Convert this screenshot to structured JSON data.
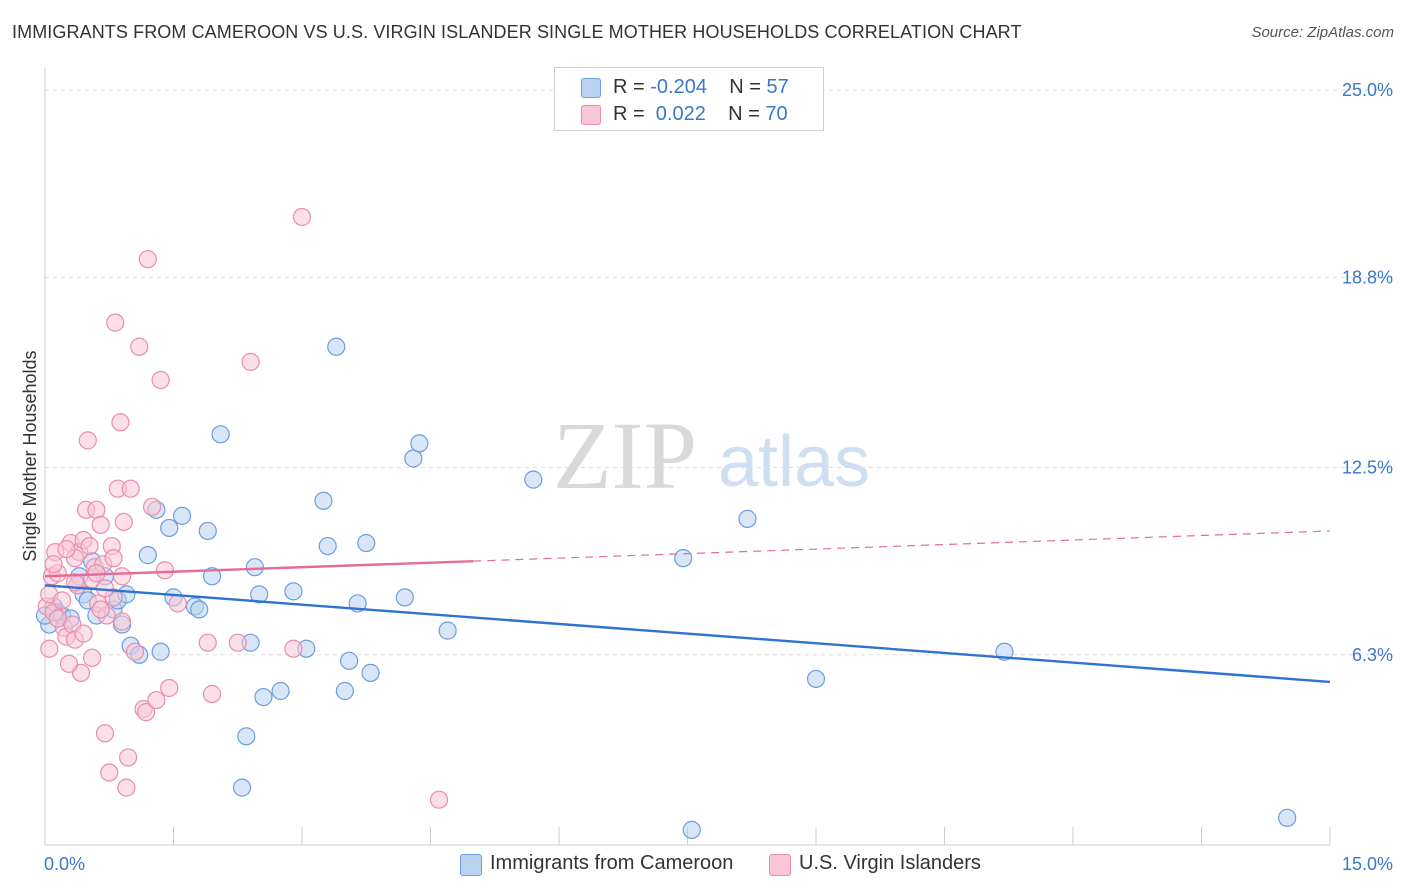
{
  "title": "IMMIGRANTS FROM CAMEROON VS U.S. VIRGIN ISLANDER SINGLE MOTHER HOUSEHOLDS CORRELATION CHART",
  "source": "Source: ZipAtlas.com",
  "watermark": {
    "zip": "ZIP",
    "atlas": "atlas"
  },
  "legend": {
    "rows": [
      {
        "r_label": "R = ",
        "r_value": "-0.204",
        "n_label": "N = ",
        "n_value": "57"
      },
      {
        "r_label": "R = ",
        "r_value": " 0.022",
        "n_label": "N = ",
        "n_value": "70"
      }
    ]
  },
  "bottom_legend": [
    "Immigrants from Cameroon",
    "U.S. Virgin Islanders"
  ],
  "chart_data": {
    "type": "scatter",
    "ylabel": "Single Mother Households",
    "xlabel": "",
    "xlim": [
      0,
      15
    ],
    "ylim": [
      0,
      25.5
    ],
    "x_tick_labels": [
      "0.0%",
      "15.0%"
    ],
    "y_ticks": [
      6.3,
      12.5,
      18.8,
      25.0
    ],
    "y_tick_labels": [
      "6.3%",
      "12.5%",
      "18.8%",
      "25.0%"
    ],
    "grid": true,
    "colors": {
      "blue": "#6a9de0",
      "blue_fill": "#b9d2f2",
      "blue_line": "#2f72d1",
      "pink": "#eb8cab",
      "pink_fill": "#f8c6d6",
      "pink_line": "#e36d96"
    },
    "series": [
      {
        "name": "Immigrants from Cameroon",
        "color": "blue",
        "points": [
          [
            0.05,
            7.3
          ],
          [
            0.1,
            7.9
          ],
          [
            0.15,
            7.7
          ],
          [
            0.2,
            7.6
          ],
          [
            0.3,
            7.5
          ],
          [
            0.4,
            8.9
          ],
          [
            0.45,
            8.3
          ],
          [
            0.5,
            8.1
          ],
          [
            0.55,
            9.4
          ],
          [
            0.6,
            7.6
          ],
          [
            0.7,
            8.9
          ],
          [
            0.8,
            7.8
          ],
          [
            0.85,
            8.1
          ],
          [
            0.9,
            7.3
          ],
          [
            0.95,
            8.3
          ],
          [
            1.0,
            6.6
          ],
          [
            1.1,
            6.3
          ],
          [
            1.2,
            9.6
          ],
          [
            1.35,
            6.4
          ],
          [
            1.3,
            11.1
          ],
          [
            1.5,
            8.2
          ],
          [
            1.45,
            10.5
          ],
          [
            1.6,
            10.9
          ],
          [
            1.75,
            7.9
          ],
          [
            1.8,
            7.8
          ],
          [
            1.9,
            10.4
          ],
          [
            1.95,
            8.9
          ],
          [
            2.05,
            13.6
          ],
          [
            2.4,
            6.7
          ],
          [
            2.45,
            9.2
          ],
          [
            2.5,
            8.3
          ],
          [
            2.55,
            4.9
          ],
          [
            2.35,
            3.6
          ],
          [
            2.3,
            1.9
          ],
          [
            2.75,
            5.1
          ],
          [
            2.9,
            8.4
          ],
          [
            3.05,
            6.5
          ],
          [
            3.3,
            9.9
          ],
          [
            3.25,
            11.4
          ],
          [
            3.4,
            16.5
          ],
          [
            3.5,
            5.1
          ],
          [
            3.55,
            6.1
          ],
          [
            3.65,
            8.0
          ],
          [
            3.75,
            10.0
          ],
          [
            3.8,
            5.7
          ],
          [
            4.2,
            8.2
          ],
          [
            4.3,
            12.8
          ],
          [
            4.37,
            13.3
          ],
          [
            4.7,
            7.1
          ],
          [
            5.7,
            12.1
          ],
          [
            7.45,
            9.5
          ],
          [
            7.55,
            0.5
          ],
          [
            8.2,
            10.8
          ],
          [
            9.0,
            5.5
          ],
          [
            11.2,
            6.4
          ],
          [
            14.5,
            0.9
          ],
          [
            0.0,
            7.6
          ]
        ]
      },
      {
        "name": "U.S. Virgin Islanders",
        "color": "pink",
        "points": [
          [
            0.02,
            7.9
          ],
          [
            0.05,
            8.3
          ],
          [
            0.08,
            8.9
          ],
          [
            0.1,
            7.7
          ],
          [
            0.12,
            9.7
          ],
          [
            0.15,
            9.0
          ],
          [
            0.2,
            8.1
          ],
          [
            0.22,
            7.2
          ],
          [
            0.25,
            6.9
          ],
          [
            0.3,
            10.0
          ],
          [
            0.32,
            7.3
          ],
          [
            0.35,
            6.8
          ],
          [
            0.38,
            8.6
          ],
          [
            0.4,
            9.7
          ],
          [
            0.42,
            5.7
          ],
          [
            0.45,
            10.1
          ],
          [
            0.48,
            11.1
          ],
          [
            0.5,
            13.4
          ],
          [
            0.52,
            9.9
          ],
          [
            0.55,
            8.8
          ],
          [
            0.58,
            9.2
          ],
          [
            0.6,
            11.1
          ],
          [
            0.62,
            8.0
          ],
          [
            0.65,
            10.6
          ],
          [
            0.68,
            9.3
          ],
          [
            0.7,
            3.7
          ],
          [
            0.72,
            7.6
          ],
          [
            0.75,
            2.4
          ],
          [
            0.78,
            9.9
          ],
          [
            0.8,
            8.2
          ],
          [
            0.82,
            17.3
          ],
          [
            0.85,
            11.8
          ],
          [
            0.88,
            14.0
          ],
          [
            0.9,
            7.4
          ],
          [
            0.92,
            10.7
          ],
          [
            0.95,
            1.9
          ],
          [
            0.97,
            2.9
          ],
          [
            1.0,
            11.8
          ],
          [
            1.05,
            6.4
          ],
          [
            1.1,
            16.5
          ],
          [
            1.15,
            4.5
          ],
          [
            1.18,
            4.4
          ],
          [
            1.2,
            19.4
          ],
          [
            1.25,
            11.2
          ],
          [
            1.3,
            4.8
          ],
          [
            1.35,
            15.4
          ],
          [
            1.4,
            9.1
          ],
          [
            1.45,
            5.2
          ],
          [
            1.55,
            8.0
          ],
          [
            1.9,
            6.7
          ],
          [
            1.95,
            5.0
          ],
          [
            2.25,
            6.7
          ],
          [
            2.4,
            16.0
          ],
          [
            2.9,
            6.5
          ],
          [
            3.0,
            20.8
          ],
          [
            4.6,
            1.5
          ],
          [
            0.1,
            9.3
          ],
          [
            0.28,
            6.0
          ],
          [
            0.35,
            9.5
          ],
          [
            0.45,
            7.0
          ],
          [
            0.55,
            6.2
          ],
          [
            0.65,
            7.8
          ],
          [
            0.05,
            6.5
          ],
          [
            0.15,
            7.5
          ],
          [
            0.25,
            9.8
          ],
          [
            0.35,
            8.7
          ],
          [
            0.6,
            9.0
          ],
          [
            0.7,
            8.5
          ],
          [
            0.8,
            9.5
          ],
          [
            0.9,
            8.9
          ]
        ]
      }
    ],
    "trend_lines": [
      {
        "series": "Immigrants from Cameroon",
        "x": [
          0.0,
          15.0
        ],
        "y": [
          8.6,
          5.4
        ],
        "style": "solid"
      },
      {
        "series": "U.S. Virgin Islanders",
        "x": [
          0.0,
          5.0
        ],
        "y": [
          8.9,
          9.4
        ],
        "style": "solid"
      },
      {
        "series": "U.S. Virgin Islanders",
        "x": [
          5.0,
          15.0
        ],
        "y": [
          9.4,
          10.4
        ],
        "style": "dashed"
      }
    ]
  }
}
